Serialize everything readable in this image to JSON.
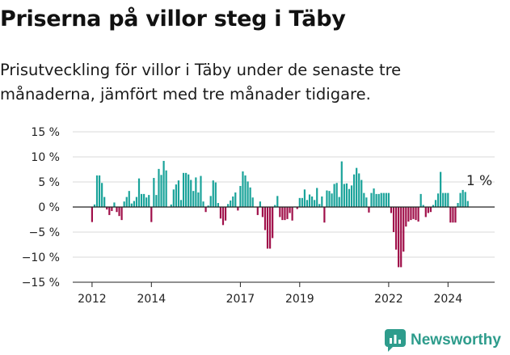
{
  "title": "Priserna på villor steg i Täby",
  "subtitle": "Prisutveckling för villor i Täby under de senaste tre månaderna, jämfört med tre månader tidigare.",
  "brand": "Newsworthy",
  "colors": {
    "positive": "#1aa39a",
    "negative": "#a0104a",
    "zero_line": "#222222",
    "grid": "#d9d9d9",
    "brand": "#2e9c8c"
  },
  "chart_data": {
    "type": "bar",
    "title": "Priserna på villor steg i Täby",
    "subtitle": "Prisutveckling för villor i Täby under de senaste tre månaderna, jämfört med tre månader tidigare.",
    "xlabel": "",
    "ylabel": "",
    "ylim": [
      -15,
      15
    ],
    "y_ticks": [
      15,
      10,
      5,
      0,
      -5,
      -10,
      -15
    ],
    "y_tick_labels": [
      "15 %",
      "10 %",
      "5 %",
      "0 %",
      "−5 %",
      "−10 %",
      "−15 %"
    ],
    "x_ticks": [
      "2012",
      "2014",
      "2017",
      "2019",
      "2022",
      "2024"
    ],
    "grid": true,
    "annotation": {
      "label": "1 %",
      "month": "2025-01"
    },
    "start_month": "2011-01",
    "values": [
      0,
      0,
      0,
      0,
      0,
      0,
      0,
      0,
      0,
      0,
      0,
      0,
      -3,
      0.5,
      6.3,
      6.3,
      4.8,
      2,
      -0.5,
      -1.6,
      -0.8,
      0.9,
      -1,
      -1.8,
      -2.6,
      1.1,
      2,
      3.2,
      0.7,
      1.2,
      2,
      5.7,
      2.6,
      2.6,
      1.9,
      2.4,
      -3,
      5.8,
      2.4,
      7.6,
      6.4,
      9.2,
      7.3,
      0,
      0.5,
      3.5,
      4.5,
      5.3,
      1.4,
      6.8,
      6.8,
      6.5,
      5.4,
      3.2,
      5.9,
      2.9,
      6.2,
      1.1,
      -1,
      0.3,
      2.2,
      5.3,
      4.9,
      0.8,
      -2.3,
      -3.6,
      -2.7,
      0.6,
      1.3,
      2.1,
      2.9,
      -0.7,
      4.2,
      7.1,
      6.3,
      5.1,
      3.9,
      1.9,
      0,
      -1.6,
      1.1,
      -2,
      -4.6,
      -8.3,
      -8.3,
      -6.2,
      0.4,
      2.2,
      -2,
      -2.6,
      -2.6,
      -2.4,
      -1.2,
      -2.7,
      0.1,
      -0.4,
      1.8,
      1.8,
      3.5,
      1.4,
      2.5,
      2.1,
      1.4,
      3.8,
      0.6,
      2.1,
      -3.1,
      3.3,
      3.2,
      2.7,
      4.6,
      4.8,
      2,
      9.1,
      4.6,
      4.7,
      3.6,
      4.3,
      6.5,
      7.8,
      6.7,
      5.4,
      2.8,
      1.9,
      -1.1,
      2.8,
      3.7,
      2.6,
      2.6,
      2.8,
      2.8,
      2.8,
      2.8,
      -1.2,
      -5,
      -8.5,
      -12,
      -12,
      -8.9,
      -3.9,
      -2.9,
      -2.6,
      -2.4,
      -2.6,
      -2.9,
      2.6,
      0.4,
      -2,
      -1.2,
      -1,
      0.4,
      1.4,
      2.7,
      7,
      2.8,
      2.8,
      2.8,
      -3.1,
      -3.1,
      -3.1,
      0.8,
      2.8,
      3.4,
      3,
      1.2
    ]
  }
}
